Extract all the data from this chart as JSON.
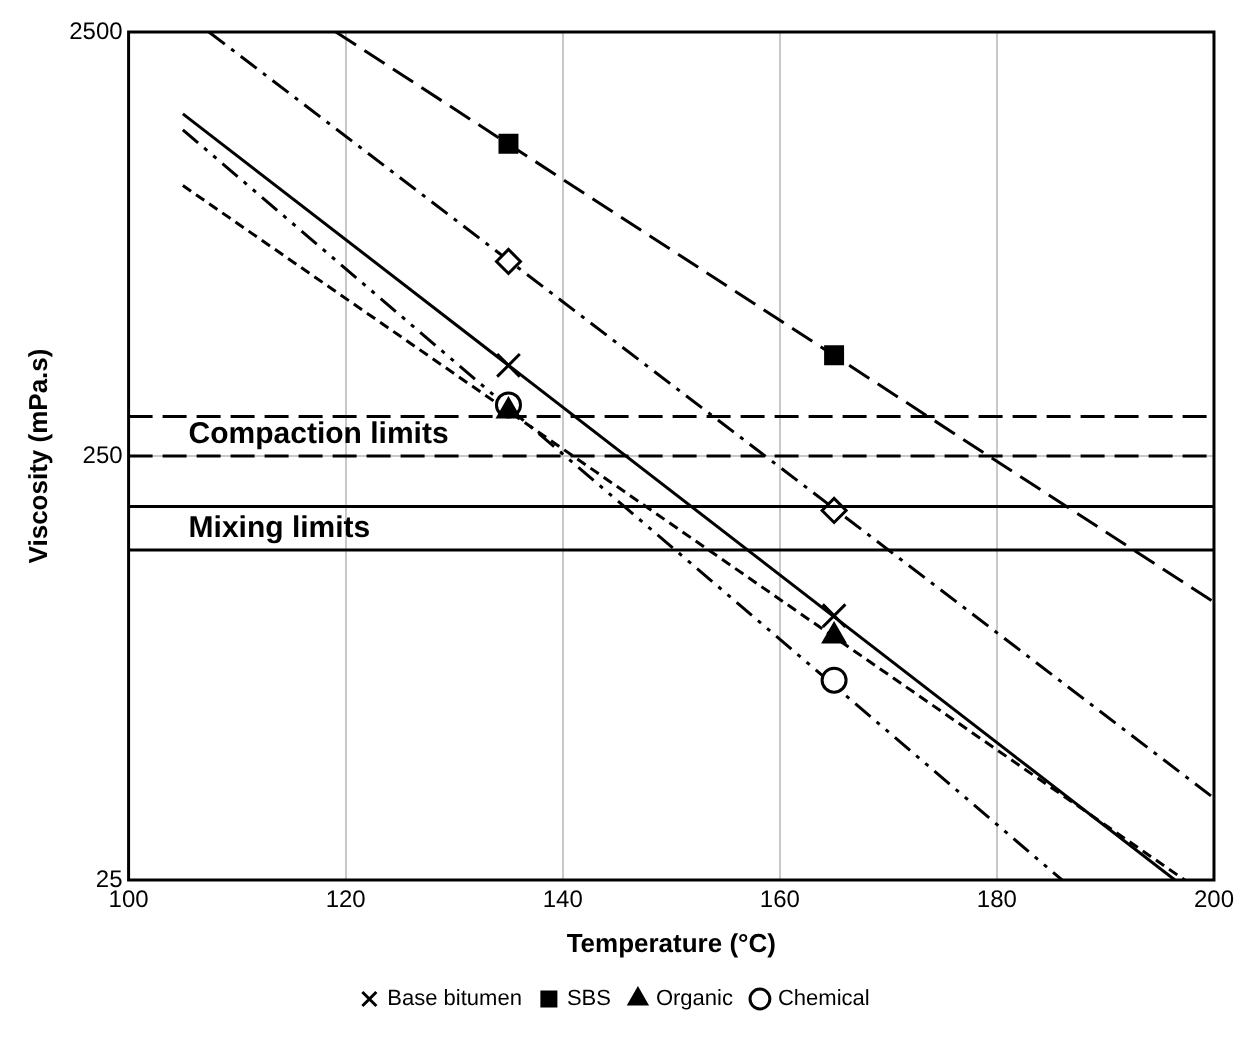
{
  "chart_data": {
    "type": "line",
    "xlabel": "Temperature (°C)",
    "ylabel": "Viscosity (mPa.s)",
    "xlim": [
      100,
      200
    ],
    "xticks": [
      100,
      120,
      140,
      160,
      180,
      200
    ],
    "ylim": [
      25,
      2500
    ],
    "yticks": [
      25,
      250,
      2500
    ],
    "log": "y",
    "grid": true,
    "legend": "bottom",
    "series": [
      {
        "name": "Base bitumen",
        "type": "scatter",
        "color": "#000000",
        "marker": "cross",
        "line_style": "solid",
        "x": [
          135,
          165
        ],
        "values": [
          409,
          105
        ]
      },
      {
        "type": "scatter",
        "color": "#000000",
        "marker": "diamond",
        "line_style": "dashdot",
        "x": [
          135,
          165
        ],
        "values": [
          719,
          186
        ]
      },
      {
        "name": "SBS",
        "type": "scatter",
        "color": "#000000",
        "marker": "square",
        "line_style": "dashed",
        "x": [
          135,
          165
        ],
        "values": [
          1362,
          432
        ]
      },
      {
        "name": "Organic",
        "type": "scatter",
        "color": "#000000",
        "marker": "triangle",
        "line_style": "dotted",
        "x": [
          135,
          165
        ],
        "values": [
          319,
          94
        ]
      },
      {
        "name": "Chemical",
        "type": "scatter",
        "color": "#000000",
        "marker": "circle",
        "line_style": "dashdotdot",
        "x": [
          135,
          165
        ],
        "values": [
          330,
          74
        ]
      },
      {
        "type": "line",
        "color": "#000000",
        "marker": "none",
        "line_style": "solid",
        "x": [
          105,
          196.4
        ],
        "values": [
          1603,
          25
        ]
      },
      {
        "type": "line",
        "color": "#000000",
        "marker": "none",
        "line_style": "dashdot",
        "x": [
          107.4,
          200
        ],
        "values": [
          2500,
          39
        ]
      },
      {
        "type": "line",
        "color": "#000000",
        "marker": "none",
        "line_style": "dashed",
        "x": [
          119.1,
          200
        ],
        "values": [
          2500,
          113
        ]
      },
      {
        "type": "line",
        "color": "#000000",
        "marker": "none",
        "line_style": "dotted",
        "x": [
          105,
          197.3
        ],
        "values": [
          1086,
          25
        ]
      },
      {
        "type": "line",
        "color": "#000000",
        "marker": "none",
        "line_style": "dashdotdot",
        "x": [
          105,
          186
        ],
        "values": [
          1470,
          25
        ]
      }
    ],
    "ref_lines": [
      {
        "axis": "y",
        "value": 310,
        "label": null,
        "color": "#000000",
        "line_style": "dashed"
      },
      {
        "axis": "y",
        "value": 250,
        "label": "Compaction limits",
        "color": "#000000",
        "line_style": "dashed"
      },
      {
        "axis": "y",
        "value": 190,
        "label": null,
        "color": "#000000",
        "line_style": "solid"
      },
      {
        "axis": "y",
        "value": 150,
        "label": "Mixing limits",
        "color": "#000000",
        "line_style": "solid"
      }
    ]
  }
}
